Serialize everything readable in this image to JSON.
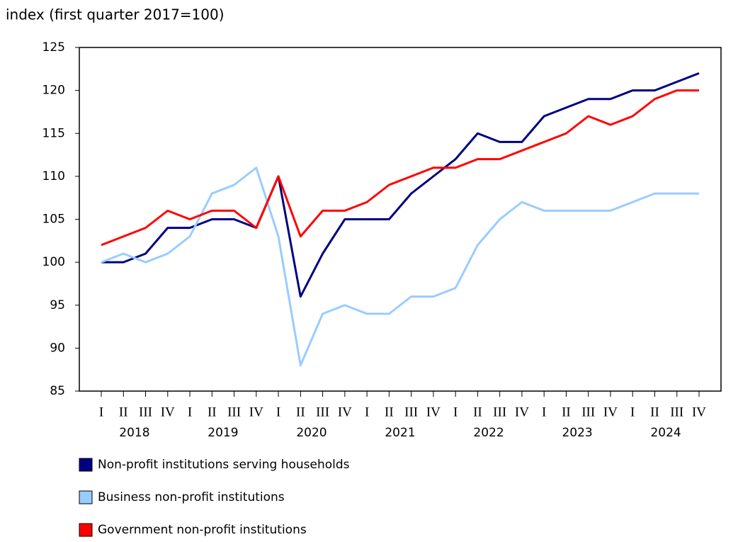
{
  "chart_data": {
    "type": "line",
    "title": "index (first quarter 2017=100)",
    "categories": [
      "I",
      "II",
      "III",
      "IV",
      "I",
      "II",
      "III",
      "IV",
      "I",
      "II",
      "III",
      "IV",
      "I",
      "II",
      "III",
      "IV",
      "I",
      "II",
      "III",
      "IV",
      "I",
      "II",
      "III",
      "IV",
      "I",
      "II",
      "III",
      "IV"
    ],
    "years": [
      "2018",
      "2019",
      "2020",
      "2021",
      "2022",
      "2023",
      "2024"
    ],
    "series": [
      {
        "name": "Non-profit institutions serving households",
        "color": "#000080",
        "values": [
          100,
          100,
          101,
          104,
          104,
          105,
          105,
          104,
          110,
          96,
          101,
          105,
          105,
          105,
          108,
          110,
          112,
          115,
          114,
          114,
          117,
          118,
          119,
          119,
          120,
          120,
          121,
          122
        ]
      },
      {
        "name": "Business non-profit institutions",
        "color": "#99ccff",
        "values": [
          100,
          101,
          100,
          101,
          103,
          108,
          109,
          111,
          103,
          88,
          94,
          95,
          94,
          94,
          96,
          96,
          97,
          102,
          105,
          107,
          106,
          106,
          106,
          106,
          107,
          108,
          108,
          108
        ]
      },
      {
        "name": "Government non-profit institutions",
        "color": "#ff0000",
        "values": [
          102,
          103,
          104,
          106,
          105,
          106,
          106,
          104,
          110,
          103,
          106,
          106,
          107,
          109,
          110,
          111,
          111,
          112,
          112,
          113,
          114,
          115,
          117,
          116,
          117,
          119,
          120,
          120
        ]
      }
    ],
    "ylim": [
      85,
      125
    ],
    "yticks": [
      85,
      90,
      95,
      100,
      105,
      110,
      115,
      120,
      125
    ],
    "grid": false,
    "legend": "bottom"
  }
}
